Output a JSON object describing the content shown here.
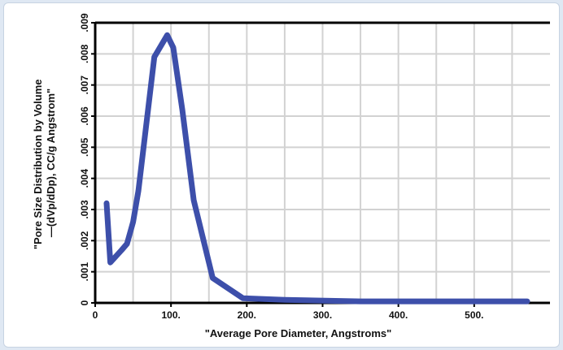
{
  "chart_data": {
    "type": "line",
    "xlabel": "\"Average Pore Diameter, Angstroms\"",
    "ylabel": [
      "\"Pore Size Distribution by Volume",
      "—(dVp/dDp), CC/g Angstrom\""
    ],
    "xlim": [
      0,
      600
    ],
    "ylim": [
      0,
      0.009
    ],
    "x_ticks": [
      {
        "value": 0,
        "label": "0"
      },
      {
        "value": 100,
        "label": "100."
      },
      {
        "value": 200,
        "label": "200."
      },
      {
        "value": 300,
        "label": "300."
      },
      {
        "value": 400,
        "label": "400."
      },
      {
        "value": 500,
        "label": "500."
      }
    ],
    "y_ticks": [
      {
        "value": 0,
        "label": "0"
      },
      {
        "value": 0.001,
        "label": ".001"
      },
      {
        "value": 0.002,
        "label": ".002"
      },
      {
        "value": 0.003,
        "label": ".003"
      },
      {
        "value": 0.004,
        "label": ".004"
      },
      {
        "value": 0.005,
        "label": ".005"
      },
      {
        "value": 0.006,
        "label": ".006"
      },
      {
        "value": 0.007,
        "label": ".007"
      },
      {
        "value": 0.008,
        "label": ".008"
      },
      {
        "value": 0.009,
        "label": ".009"
      }
    ],
    "grid": true,
    "series": [
      {
        "color": "#3d4faa",
        "x": [
          15,
          20,
          35,
          42,
          50,
          57,
          78,
          95,
          103,
          115,
          130,
          155,
          195,
          250,
          350,
          450,
          570
        ],
        "y": [
          0.0032,
          0.0013,
          0.0017,
          0.0019,
          0.0026,
          0.0036,
          0.0079,
          0.0086,
          0.0082,
          0.0062,
          0.0033,
          0.0008,
          0.00015,
          0.0001,
          5e-05,
          5e-05,
          5e-05
        ]
      }
    ]
  }
}
